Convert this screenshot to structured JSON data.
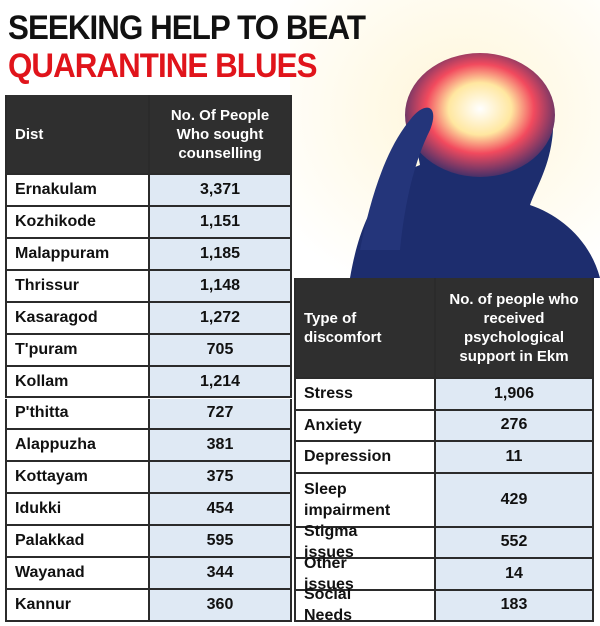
{
  "header": {
    "title_line1": "SEEKING HELP TO BEAT",
    "title_line2": "QUARANTINE BLUES"
  },
  "table1": {
    "columns": [
      "Dist",
      "No. Of People Who sought counselling"
    ],
    "rows": [
      [
        "Ernakulam",
        "3,371"
      ],
      [
        "Kozhikode",
        "1,151"
      ],
      [
        "Malappuram",
        "1,185"
      ],
      [
        "Thrissur",
        "1,148"
      ],
      [
        "Kasaragod",
        "1,272"
      ],
      [
        "T'puram",
        "705"
      ],
      [
        "Kollam",
        "1,214"
      ],
      [
        "P'thitta",
        "727"
      ],
      [
        "Alappuzha",
        "381"
      ],
      [
        "Kottayam",
        "375"
      ],
      [
        "Idukki",
        "454"
      ],
      [
        "Palakkad",
        "595"
      ],
      [
        "Wayanad",
        "344"
      ],
      [
        "Kannur",
        "360"
      ]
    ]
  },
  "table2": {
    "columns": [
      "Type of discomfort",
      "No. of people who received psychological support in Ekm"
    ],
    "rows": [
      [
        "Stress",
        "1,906"
      ],
      [
        "Anxiety",
        "276"
      ],
      [
        "Depression",
        "11"
      ],
      [
        "Sleep impairment",
        "429"
      ],
      [
        "Stigma issues",
        "552"
      ],
      [
        "Other issues",
        "14"
      ],
      [
        "Social Needs",
        "183"
      ]
    ]
  }
}
